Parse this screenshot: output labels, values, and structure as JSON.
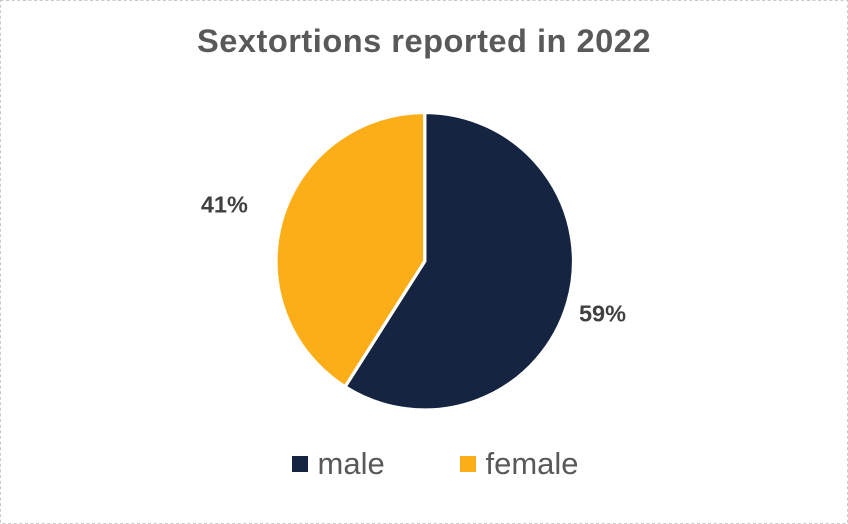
{
  "chart_data": {
    "type": "pie",
    "title": "Sextortions reported in 2022",
    "series": [
      {
        "name": "male",
        "value": 59,
        "label": "59%",
        "color": "#152440"
      },
      {
        "name": "female",
        "value": 41,
        "label": "41%",
        "color": "#FBAE17"
      }
    ],
    "start_angle_deg": 0,
    "direction": "clockwise",
    "data_labels": "outside-end",
    "legend_position": "bottom",
    "slice_border_color": "#ffffff",
    "title_color": "#595959",
    "label_color": "#404040",
    "legend_text_color": "#595959",
    "frame_border_color": "#c9c9c9",
    "background_color": "#ffffff"
  }
}
